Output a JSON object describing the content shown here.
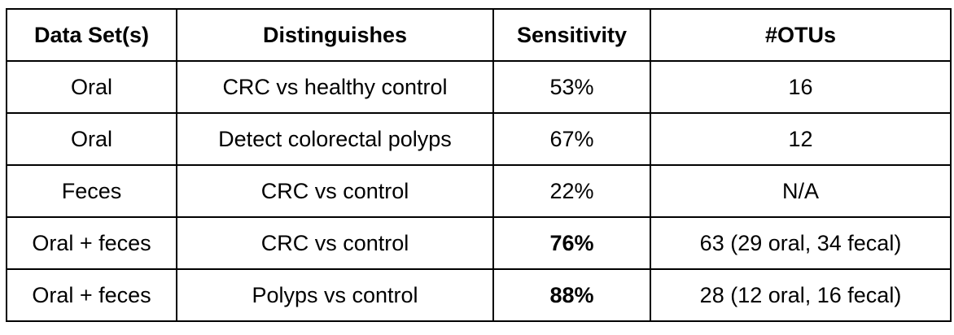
{
  "table": {
    "headers": [
      "Data Set(s)",
      "Distinguishes",
      "Sensitivity",
      "#OTUs"
    ],
    "rows": [
      {
        "data_set": "Oral",
        "distinguishes": "CRC vs healthy control",
        "sensitivity": "53%",
        "otus": "16",
        "sensitivity_bold": false
      },
      {
        "data_set": "Oral",
        "distinguishes": "Detect colorectal polyps",
        "sensitivity": "67%",
        "otus": "12",
        "sensitivity_bold": false
      },
      {
        "data_set": "Feces",
        "distinguishes": "CRC vs control",
        "sensitivity": "22%",
        "otus": "N/A",
        "sensitivity_bold": false
      },
      {
        "data_set": "Oral + feces",
        "distinguishes": "CRC vs control",
        "sensitivity": "76%",
        "otus": "63 (29 oral, 34 fecal)",
        "sensitivity_bold": true
      },
      {
        "data_set": "Oral + feces",
        "distinguishes": "Polyps vs control",
        "sensitivity": "88%",
        "otus": "28 (12 oral, 16 fecal)",
        "sensitivity_bold": true
      }
    ]
  }
}
